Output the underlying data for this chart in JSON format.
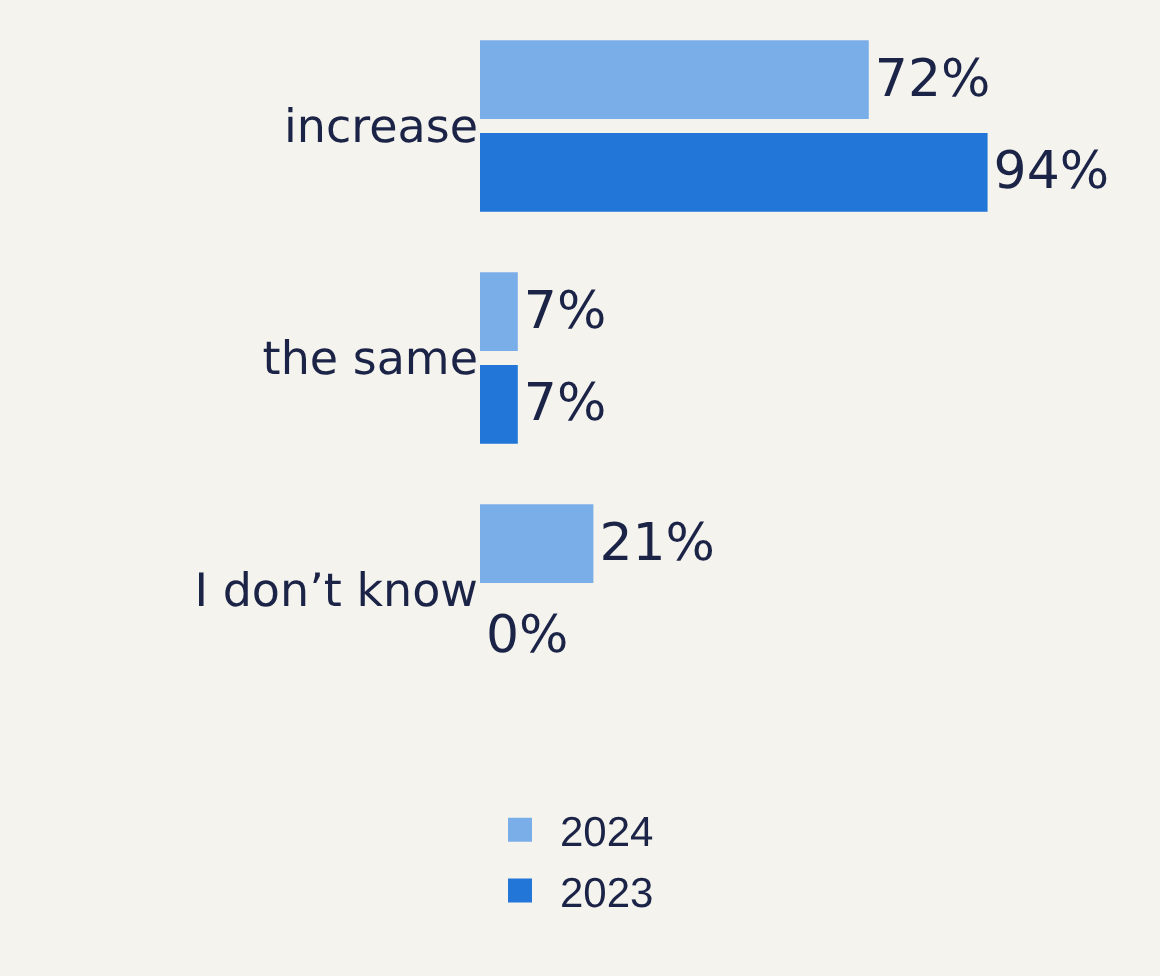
{
  "chart_data": {
    "type": "bar",
    "orientation": "horizontal",
    "categories": [
      "increase",
      "the same",
      "I don’t know"
    ],
    "series": [
      {
        "name": "2024",
        "color": "#7aaee8",
        "values": [
          72,
          7,
          21
        ],
        "value_labels": [
          "72%",
          "7%",
          "21%"
        ]
      },
      {
        "name": "2023",
        "color": "#2176d8",
        "values": [
          94,
          7,
          0
        ],
        "value_labels": [
          "94%",
          "7%",
          "0%"
        ]
      }
    ],
    "legend": "bottom",
    "grid": false
  }
}
